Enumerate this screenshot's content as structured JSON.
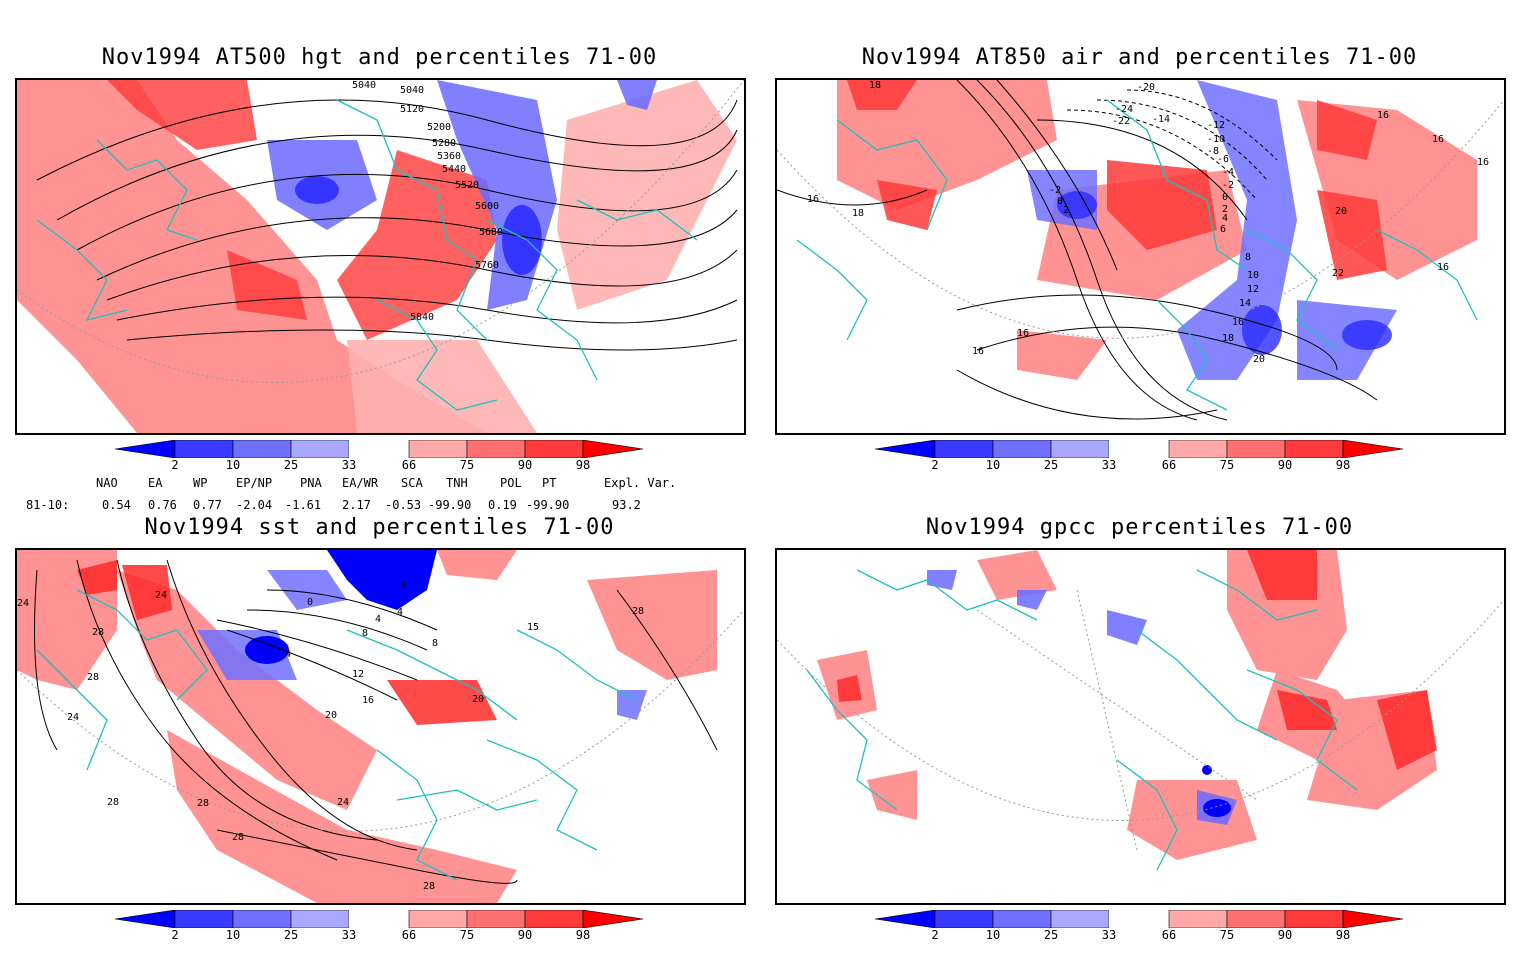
{
  "panels": [
    {
      "title": "Nov1994 AT500 hgt and percentiles 71-00",
      "contour_labels": [
        "5040",
        "5040",
        "5120",
        "5200",
        "5280",
        "5360",
        "5440",
        "5520",
        "5600",
        "5680",
        "5760",
        "5840"
      ]
    },
    {
      "title": "Nov1994 AT850 air and percentiles 71-00",
      "contour_labels": [
        "18",
        "-20",
        "-24",
        "-22",
        "-14",
        "-12",
        "-10",
        "-8",
        "-6",
        "-4",
        "-2",
        "0",
        "2",
        "4",
        "6",
        "8",
        "10",
        "12",
        "14",
        "16",
        "18",
        "20",
        "22",
        "16",
        "16",
        "16",
        "16",
        "16",
        "16",
        "16",
        "18",
        "20",
        "-2",
        "0",
        "2"
      ]
    },
    {
      "title": "Nov1994 sst and percentiles 71-00",
      "contour_labels": [
        "24",
        "24",
        "28",
        "28",
        "24",
        "28",
        "28",
        "0",
        "0",
        "4",
        "8",
        "12",
        "16",
        "20",
        "20",
        "24",
        "28",
        "28",
        "28",
        "15",
        "4",
        "4",
        "8"
      ]
    },
    {
      "title": "Nov1994 gpcc percentiles 71-00",
      "contour_labels": []
    }
  ],
  "colorbar": {
    "ticks": [
      "2",
      "10",
      "25",
      "33",
      "66",
      "75",
      "90",
      "98"
    ],
    "colors": [
      "#0000ff",
      "#3a3aff",
      "#7070ff",
      "#a8a8ff",
      "#ffffff",
      "#ffa8a8",
      "#ff7070",
      "#ff3a3a",
      "#ff0000"
    ]
  },
  "indices": {
    "headers": [
      "NAO",
      "EA",
      "WP",
      "EP/NP",
      "PNA",
      "EA/WR",
      "SCA",
      "TNH",
      "POL",
      "PT",
      "Expl. Var."
    ],
    "row_label": "81-10:",
    "values": [
      "0.54",
      "0.76",
      "0.77",
      "-2.04",
      "-1.61",
      "2.17",
      "-0.53",
      "-99.90",
      "0.19",
      "-99.90",
      "93.2"
    ]
  }
}
